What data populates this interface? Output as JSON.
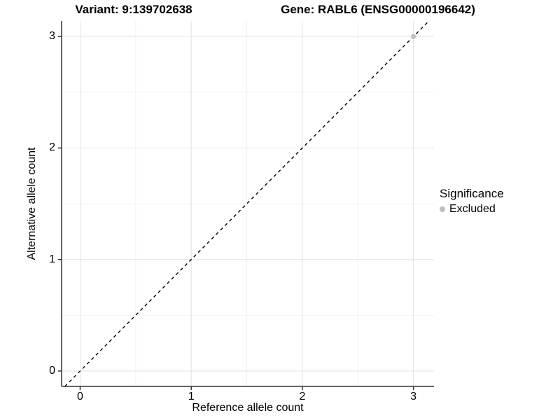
{
  "title": {
    "variant": "Variant: 9:139702638",
    "gene": "Gene: RABL6 (ENSG00000196642)"
  },
  "axes": {
    "x_label": "Reference allele count",
    "y_label": "Alternative allele count",
    "x_tick_labels": [
      "0",
      "1",
      "2",
      "3"
    ],
    "y_tick_labels": [
      "0",
      "1",
      "2",
      "3"
    ]
  },
  "legend": {
    "title": "Significance",
    "items": [
      {
        "label": "Excluded",
        "color": "#bebebe"
      }
    ]
  },
  "colors": {
    "background": "#ffffff",
    "grid_major": "#e3e3e3",
    "grid_minor": "#f2f2f2",
    "axis": "#333333",
    "tick": "#333333",
    "text": "#000000",
    "identity_line": "#000000"
  },
  "chart_data": {
    "type": "scatter",
    "title": "Variant: 9:139702638 — Gene: RABL6 (ENSG00000196642)",
    "xlabel": "Reference allele count",
    "ylabel": "Alternative allele count",
    "xlim": [
      -0.167,
      3.185
    ],
    "ylim": [
      -0.138,
      3.139
    ],
    "major_ticks": [
      0,
      1,
      2,
      3
    ],
    "minor_ticks": [
      0.5,
      1.5,
      2.5
    ],
    "grid": true,
    "legend_position": "right",
    "identity_line": {
      "style": "dashed",
      "equation": "y = x"
    },
    "series": [
      {
        "name": "Excluded",
        "color": "#bebebe",
        "points": [
          [
            3,
            3
          ]
        ]
      }
    ]
  }
}
